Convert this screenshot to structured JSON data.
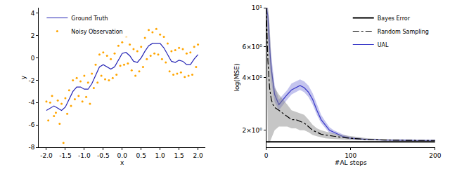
{
  "chart_data": [
    {
      "type": "scatter",
      "x_label": "x",
      "y_label": "y",
      "xlim": [
        -2.2,
        2.2
      ],
      "xticks": [
        {
          "value": -2,
          "label": "-2.0"
        },
        {
          "value": -1.5,
          "label": "-1.5"
        },
        {
          "value": -1,
          "label": "-1.0"
        },
        {
          "value": -0.5,
          "label": "-0.5"
        },
        {
          "value": 0,
          "label": "0.0"
        },
        {
          "value": 0.5,
          "label": "0.5"
        },
        {
          "value": 1,
          "label": "1.0"
        },
        {
          "value": 1.5,
          "label": "1.5"
        },
        {
          "value": 2,
          "label": "2.0"
        }
      ],
      "ylim": [
        -8,
        4.5
      ],
      "yticks": [
        -8,
        -6,
        -4,
        -2,
        0,
        2,
        4
      ],
      "grid": false,
      "legend": "upper left",
      "series": [
        {
          "name": "Ground Truth",
          "type": "line",
          "color": "#2424b4",
          "x": [
            -2.0,
            -1.9,
            -1.8,
            -1.7,
            -1.6,
            -1.5,
            -1.4,
            -1.3,
            -1.2,
            -1.1,
            -1.0,
            -0.9,
            -0.8,
            -0.7,
            -0.6,
            -0.5,
            -0.4,
            -0.3,
            -0.2,
            -0.1,
            0.0,
            0.1,
            0.2,
            0.3,
            0.4,
            0.5,
            0.6,
            0.7,
            0.8,
            0.9,
            1.0,
            1.1,
            1.2,
            1.3,
            1.4,
            1.5,
            1.6,
            1.7,
            1.8,
            1.9,
            2.0
          ],
          "values": [
            -4.7,
            -4.5,
            -4.3,
            -4.5,
            -4.7,
            -4.4,
            -3.7,
            -3.0,
            -2.6,
            -2.6,
            -2.8,
            -2.8,
            -2.3,
            -1.5,
            -0.8,
            -0.6,
            -0.8,
            -1.0,
            -0.8,
            -0.2,
            0.4,
            0.5,
            0.2,
            -0.3,
            -0.4,
            0.0,
            0.6,
            1.1,
            1.3,
            1.3,
            1.3,
            0.9,
            0.3,
            -0.3,
            -0.4,
            -0.2,
            -0.3,
            -0.6,
            -0.6,
            -0.1,
            0.3
          ]
        },
        {
          "name": "Noisy Observation",
          "type": "scatter",
          "marker": "circle",
          "color": "#ffa500",
          "x": [
            -2.0,
            -1.95,
            -1.9,
            -1.85,
            -1.8,
            -1.75,
            -1.7,
            -1.65,
            -1.6,
            -1.55,
            -1.5,
            -1.45,
            -1.4,
            -1.35,
            -1.3,
            -1.25,
            -1.2,
            -1.15,
            -1.1,
            -1.05,
            -1.0,
            -0.95,
            -0.9,
            -0.85,
            -0.8,
            -0.75,
            -0.7,
            -0.65,
            -0.6,
            -0.55,
            -0.5,
            -0.45,
            -0.4,
            -0.35,
            -0.3,
            -0.25,
            -0.2,
            -0.15,
            -0.1,
            -0.05,
            0.0,
            0.05,
            0.1,
            0.15,
            0.2,
            0.25,
            0.3,
            0.35,
            0.4,
            0.45,
            0.5,
            0.55,
            0.6,
            0.65,
            0.7,
            0.75,
            0.8,
            0.85,
            0.9,
            0.95,
            1.0,
            1.05,
            1.1,
            1.15,
            1.2,
            1.25,
            1.3,
            1.35,
            1.4,
            1.45,
            1.5,
            1.55,
            1.6,
            1.65,
            1.7,
            1.75,
            1.8,
            1.85,
            1.9,
            1.95,
            2.0
          ],
          "values": [
            -3.9,
            -5.6,
            -4.0,
            -3.4,
            -5.2,
            -4.9,
            -3.8,
            -5.9,
            -4.1,
            -7.6,
            -3.6,
            -5.0,
            -2.9,
            -4.3,
            -2.0,
            -3.7,
            -1.8,
            -3.4,
            -2.1,
            -3.9,
            -1.6,
            -3.5,
            -2.2,
            -4.1,
            -1.4,
            -2.7,
            -0.6,
            -2.2,
            0.3,
            -1.6,
            0.5,
            -1.9,
            0.2,
            -2.0,
            -0.1,
            -1.8,
            0.4,
            -1.5,
            1.1,
            -0.7,
            1.4,
            -0.6,
            1.9,
            -0.5,
            1.2,
            -1.1,
            0.8,
            -1.6,
            0.6,
            -1.2,
            1.0,
            -0.8,
            1.8,
            -0.1,
            2.5,
            0.2,
            2.3,
            0.4,
            2.6,
            0.3,
            2.1,
            -0.1,
            1.9,
            -0.4,
            1.3,
            -1.2,
            0.6,
            -1.5,
            0.7,
            -1.4,
            0.9,
            -1.3,
            0.8,
            -1.7,
            0.4,
            -1.6,
            0.5,
            -1.5,
            1.0,
            -0.8,
            1.2
          ]
        }
      ]
    },
    {
      "type": "line",
      "x_label": "#AL steps",
      "y_label": "log(MSE)",
      "log": "y",
      "xlim": [
        0,
        200
      ],
      "xticks": [
        0,
        100,
        200
      ],
      "ylim": [
        1.6,
        10
      ],
      "yticks": [
        {
          "value": 2,
          "label": "2×10⁰"
        },
        {
          "value": 4,
          "label": "4×10⁰"
        },
        {
          "value": 6,
          "label": "6×10⁰"
        },
        {
          "value": 10,
          "label": "10¹"
        }
      ],
      "grid": false,
      "legend": "upper right",
      "x": [
        0,
        2,
        4,
        6,
        8,
        10,
        15,
        20,
        25,
        30,
        35,
        40,
        45,
        50,
        55,
        60,
        65,
        70,
        75,
        80,
        90,
        100,
        120,
        140,
        160,
        180,
        200
      ],
      "series": [
        {
          "name": "UAL",
          "color": "#3838c8",
          "line_style": "solid",
          "values": [
            10,
            9,
            6,
            4.5,
            3.8,
            3.2,
            2.8,
            3.0,
            3.2,
            3.4,
            3.5,
            3.6,
            3.5,
            3.3,
            3.0,
            2.6,
            2.3,
            2.15,
            2.0,
            1.95,
            1.85,
            1.8,
            1.77,
            1.76,
            1.75,
            1.75,
            1.75
          ],
          "lower": [
            9,
            7,
            4.8,
            3.8,
            3.3,
            2.9,
            2.6,
            2.8,
            3.0,
            3.2,
            3.3,
            3.4,
            3.3,
            3.1,
            2.8,
            2.45,
            2.2,
            2.05,
            1.93,
            1.9,
            1.82,
            1.78,
            1.76,
            1.75,
            1.74,
            1.74,
            1.74
          ],
          "upper": [
            10,
            10,
            7.5,
            5.3,
            4.4,
            3.6,
            3.0,
            3.2,
            3.4,
            3.7,
            3.8,
            3.9,
            3.8,
            3.6,
            3.25,
            2.8,
            2.45,
            2.25,
            2.08,
            2.0,
            1.9,
            1.83,
            1.79,
            1.77,
            1.76,
            1.76,
            1.76
          ]
        },
        {
          "name": "Random Sampling",
          "color": "#000000",
          "line_style": "dashdot",
          "values": [
            10,
            5,
            3.5,
            3.0,
            2.8,
            2.7,
            2.6,
            2.5,
            2.4,
            2.3,
            2.3,
            2.25,
            2.2,
            2.1,
            2.0,
            1.95,
            1.9,
            1.88,
            1.86,
            1.85,
            1.82,
            1.8,
            1.77,
            1.76,
            1.75,
            1.75,
            1.75
          ],
          "lower": [
            8,
            1.7,
            1.7,
            1.8,
            1.9,
            2.0,
            2.1,
            2.1,
            2.1,
            2.05,
            2.05,
            2.0,
            2.0,
            1.95,
            1.88,
            1.85,
            1.82,
            1.8,
            1.79,
            1.78,
            1.77,
            1.76,
            1.75,
            1.74,
            1.74,
            1.74,
            1.74
          ],
          "upper": [
            10,
            10,
            8,
            5,
            4,
            3.5,
            3.2,
            3.0,
            2.8,
            2.6,
            2.55,
            2.5,
            2.45,
            2.3,
            2.15,
            2.05,
            2.0,
            1.97,
            1.94,
            1.92,
            1.88,
            1.85,
            1.8,
            1.78,
            1.76,
            1.76,
            1.76
          ]
        },
        {
          "name": "Bayes Error",
          "color": "#000000",
          "line_style": "solid",
          "values": [
            1.72,
            1.72,
            1.72,
            1.72,
            1.72,
            1.72,
            1.72,
            1.72,
            1.72,
            1.72,
            1.72,
            1.72,
            1.72,
            1.72,
            1.72,
            1.72,
            1.72,
            1.72,
            1.72,
            1.72,
            1.72,
            1.72,
            1.72,
            1.72,
            1.72,
            1.72,
            1.72
          ]
        }
      ]
    }
  ]
}
